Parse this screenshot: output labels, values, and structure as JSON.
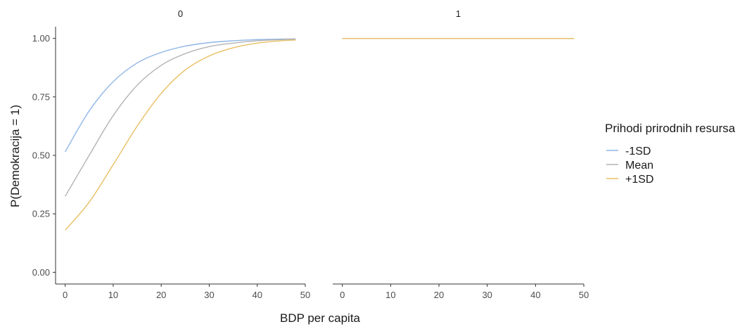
{
  "chart_data": {
    "type": "line",
    "xlabel": "BDP per capita",
    "ylabel": "P(Demokracija = 1)",
    "xlim": [
      -2,
      50
    ],
    "ylim": [
      -0.05,
      1.05
    ],
    "x_ticks": [
      0,
      10,
      20,
      30,
      40,
      50
    ],
    "y_ticks": [
      0.0,
      0.25,
      0.5,
      0.75,
      1.0
    ],
    "y_tick_labels": [
      "0.00",
      "0.25",
      "0.50",
      "0.75",
      "1.00"
    ],
    "grid": false,
    "legend": {
      "title": "Prihodi prirodnih resursa",
      "placement": "right",
      "entries": [
        {
          "label": "-1SD",
          "color": "#8fb6e6"
        },
        {
          "label": "Mean",
          "color": "#b3b3b3"
        },
        {
          "label": "+1SD",
          "color": "#e8bf63"
        }
      ]
    },
    "panels": [
      {
        "strip_label": "0",
        "series": [
          {
            "name": "-1SD",
            "x": [
              0,
              5,
              10,
              15,
              20,
              25,
              30,
              35,
              40,
              45,
              48
            ],
            "values": [
              0.515,
              0.69,
              0.815,
              0.895,
              0.94,
              0.967,
              0.982,
              0.99,
              0.995,
              0.997,
              0.998
            ]
          },
          {
            "name": "Mean",
            "x": [
              0,
              5,
              10,
              15,
              20,
              25,
              30,
              35,
              40,
              45,
              48
            ],
            "values": [
              0.325,
              0.5,
              0.67,
              0.8,
              0.885,
              0.935,
              0.965,
              0.98,
              0.99,
              0.995,
              0.997
            ]
          },
          {
            "name": "+1SD",
            "x": [
              0,
              5,
              10,
              15,
              20,
              25,
              30,
              35,
              40,
              45,
              48
            ],
            "values": [
              0.18,
              0.3,
              0.46,
              0.625,
              0.765,
              0.865,
              0.925,
              0.96,
              0.98,
              0.99,
              0.993
            ]
          }
        ]
      },
      {
        "strip_label": "1",
        "series": [
          {
            "name": "-1SD",
            "x": [
              0,
              48
            ],
            "values": [
              1.0,
              1.0
            ]
          },
          {
            "name": "Mean",
            "x": [
              0,
              48
            ],
            "values": [
              1.0,
              1.0
            ]
          },
          {
            "name": "+1SD",
            "x": [
              0,
              48
            ],
            "values": [
              1.0,
              1.0
            ]
          }
        ]
      }
    ]
  }
}
